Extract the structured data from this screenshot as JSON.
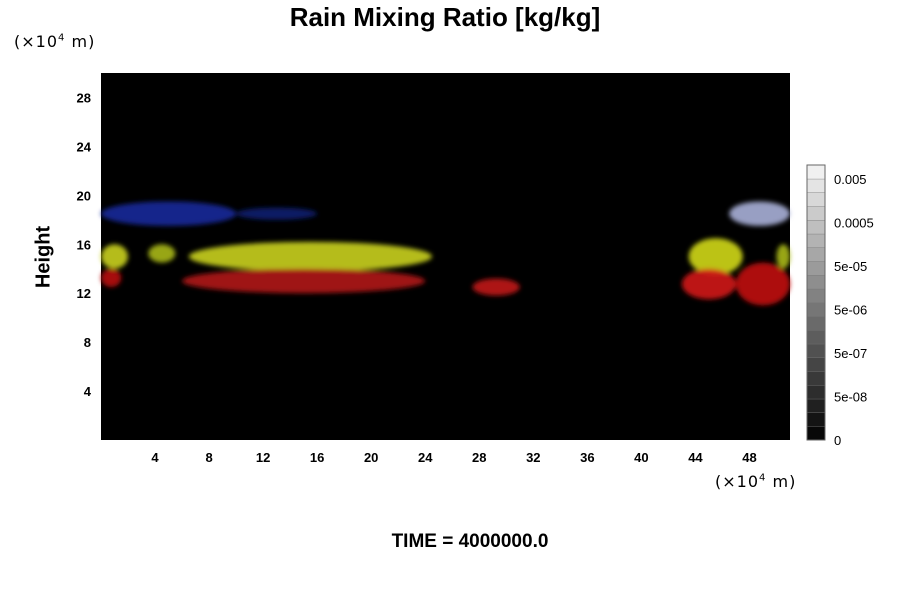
{
  "chart_data": {
    "type": "heatmap",
    "title": "Rain Mixing Ratio [kg/kg]",
    "ylabel": "Height",
    "xlabel": "",
    "x_unit": "(×10",
    "y_unit": "(×10",
    "unit_exp": "4",
    "unit_suffix": "m)",
    "xlim": [
      0,
      51
    ],
    "ylim": [
      0,
      30
    ],
    "x_ticks": [
      4,
      8,
      12,
      16,
      20,
      24,
      28,
      32,
      36,
      40,
      44,
      48
    ],
    "y_ticks": [
      4,
      8,
      12,
      16,
      20,
      24,
      28
    ],
    "background": "#000000",
    "colorbar": {
      "labels": [
        "0.005",
        "0.0005",
        "5e-05",
        "5e-06",
        "5e-07",
        "5e-08",
        "0"
      ],
      "levels": 20
    },
    "features": [
      {
        "layer": "upper",
        "color": "#1a2a9a",
        "x": [
          0,
          10
        ],
        "y": [
          17.5,
          19.5
        ]
      },
      {
        "layer": "upper",
        "color": "#101e70",
        "x": [
          10,
          16
        ],
        "y": [
          18,
          19
        ]
      },
      {
        "layer": "upper",
        "color": "#a8b0d8",
        "x": [
          46.5,
          51
        ],
        "y": [
          17.5,
          19.5
        ]
      },
      {
        "layer": "middle",
        "color": "#c9d020",
        "x": [
          0,
          2
        ],
        "y": [
          14,
          16
        ]
      },
      {
        "layer": "middle",
        "color": "#a8b818",
        "x": [
          3.5,
          5.5
        ],
        "y": [
          14.5,
          16
        ]
      },
      {
        "layer": "middle",
        "color": "#c9d020",
        "x": [
          6.5,
          24.5
        ],
        "y": [
          13.8,
          16.2
        ]
      },
      {
        "layer": "middle",
        "color": "#d0d818",
        "x": [
          43.5,
          47.5
        ],
        "y": [
          13.5,
          16.5
        ]
      },
      {
        "layer": "middle",
        "color": "#a8b818",
        "x": [
          50,
          51
        ],
        "y": [
          14,
          16
        ]
      },
      {
        "layer": "lower",
        "color": "#b81010",
        "x": [
          0,
          1.5
        ],
        "y": [
          12.5,
          14
        ]
      },
      {
        "layer": "lower",
        "color": "#b01515",
        "x": [
          6,
          24
        ],
        "y": [
          12,
          14
        ]
      },
      {
        "layer": "lower",
        "color": "#c01818",
        "x": [
          27.5,
          31
        ],
        "y": [
          11.8,
          13.2
        ]
      },
      {
        "layer": "lower",
        "color": "#d01414",
        "x": [
          43,
          47
        ],
        "y": [
          11.5,
          14
        ]
      },
      {
        "layer": "lower",
        "color": "#c01010",
        "x": [
          47,
          51
        ],
        "y": [
          11,
          14.5
        ]
      }
    ]
  },
  "footer": {
    "label": "TIME = 4000000.0"
  }
}
